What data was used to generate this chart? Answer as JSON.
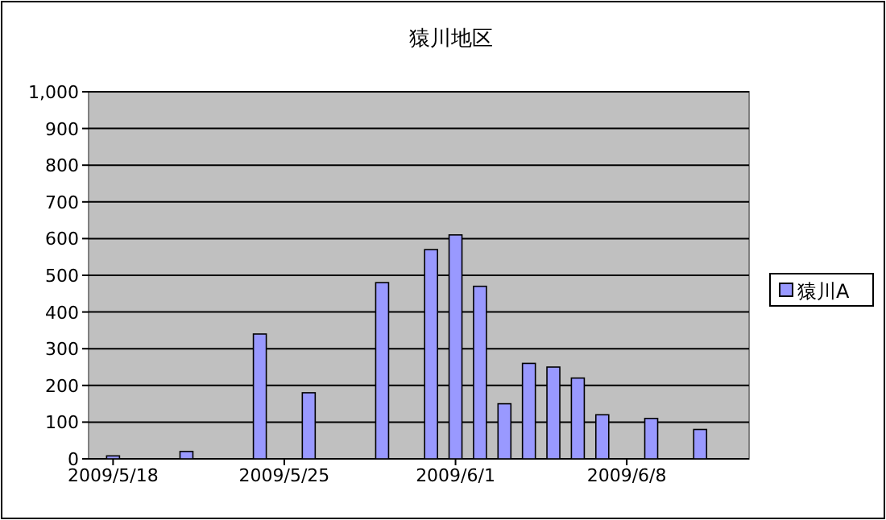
{
  "chart_data": {
    "type": "bar",
    "title": "猿川地区",
    "x": [
      "2009-05-18",
      "2009-05-21",
      "2009-05-24",
      "2009-05-26",
      "2009-05-29",
      "2009-05-31",
      "2009-06-01",
      "2009-06-02",
      "2009-06-03",
      "2009-06-04",
      "2009-06-05",
      "2009-06-06",
      "2009-06-07",
      "2009-06-09",
      "2009-06-11"
    ],
    "series": [
      {
        "name": "猿川A",
        "color": "#9999ff",
        "values": [
          8,
          20,
          340,
          180,
          480,
          570,
          610,
          470,
          150,
          260,
          250,
          220,
          120,
          110,
          80
        ]
      }
    ],
    "xlim": [
      "2009-05-17",
      "2009-06-13"
    ],
    "xticks": [
      {
        "value": "2009-05-18",
        "label": "2009/5/18"
      },
      {
        "value": "2009-05-25",
        "label": "2009/5/25"
      },
      {
        "value": "2009-06-01",
        "label": "2009/6/1"
      },
      {
        "value": "2009-06-08",
        "label": "2009/6/8"
      }
    ],
    "ylim": [
      0,
      1000
    ],
    "yticks": [
      0,
      100,
      200,
      300,
      400,
      500,
      600,
      700,
      800,
      900,
      {
        "value": 1000,
        "label": "1,000"
      }
    ],
    "grid": "y",
    "legend": "right"
  }
}
